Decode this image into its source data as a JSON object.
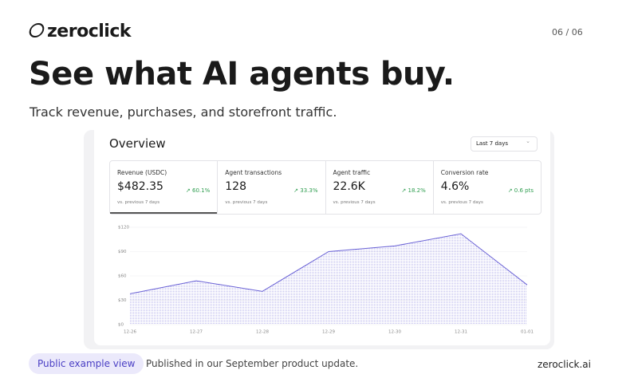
{
  "header": {
    "logo": "zeroclick",
    "page": "06 / 06",
    "title": "See what AI agents buy.",
    "subtitle": "Track revenue, purchases, and storefront traffic."
  },
  "dashboard": {
    "title": "Overview",
    "range": "Last 7 days",
    "metrics": [
      {
        "label": "Revenue (USDC)",
        "value": "$482.35",
        "change": "60.1%",
        "note": "vs. previous 7 days"
      },
      {
        "label": "Agent transactions",
        "value": "128",
        "change": "33.3%",
        "note": "vs. previous 7 days"
      },
      {
        "label": "Agent traffic",
        "value": "22.6K",
        "change": "18.2%",
        "note": "vs. previous 7 days"
      },
      {
        "label": "Conversion rate",
        "value": "4.6%",
        "change": "0.6 pts",
        "note": "vs. previous 7 days"
      }
    ]
  },
  "chart_data": {
    "type": "area",
    "categories": [
      "12-26",
      "12-27",
      "12-28",
      "12-29",
      "12-30",
      "12-31",
      "01-01"
    ],
    "values": [
      38,
      54,
      41,
      90,
      97,
      112,
      49
    ],
    "color": "#6b63d6",
    "ylim": [
      0,
      120
    ],
    "yticks": [
      {
        "value": 0,
        "label": "$0"
      },
      {
        "value": 30,
        "label": "$30"
      },
      {
        "value": 60,
        "label": "$60"
      },
      {
        "value": 90,
        "label": "$90"
      },
      {
        "value": 120,
        "label": "$120"
      }
    ],
    "grid": true
  },
  "footer": {
    "badge": "Public example view",
    "note": "Published in our September product update.",
    "site": "zeroclick.ai"
  }
}
